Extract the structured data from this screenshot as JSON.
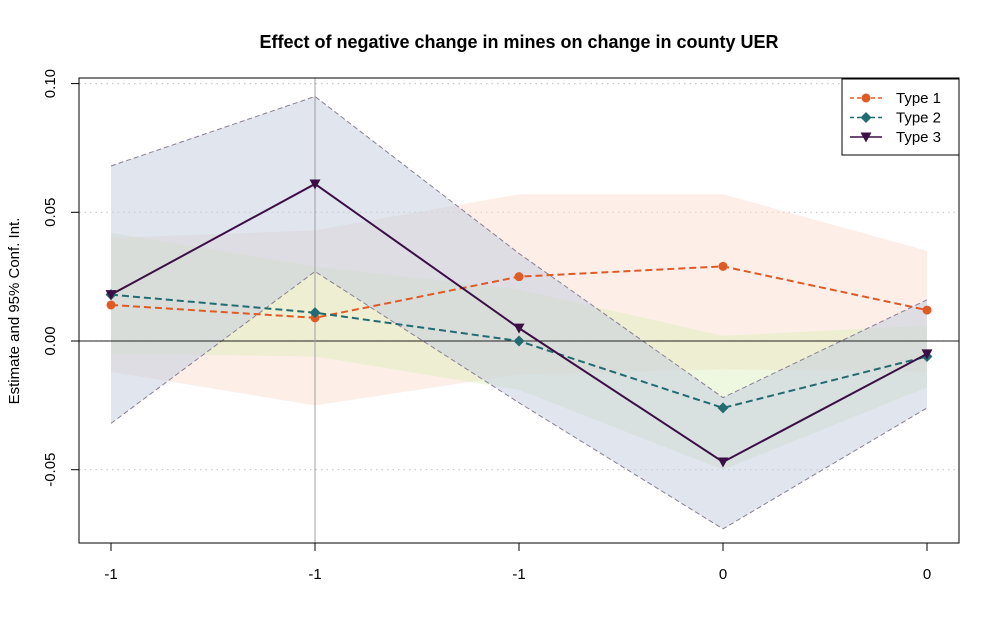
{
  "chart_data": {
    "type": "line",
    "title": "Effect of negative change in mines on change in county UER",
    "xlabel": "",
    "ylabel": "Estimate and 95% Conf. Int.",
    "x_tick_labels": [
      "-1",
      "-1",
      "-1",
      "0",
      "0"
    ],
    "y_ticks": [
      -0.05,
      0.0,
      0.05,
      0.1
    ],
    "y_tick_labels": [
      "-0.05",
      "0.00",
      "0.05",
      "0.10"
    ],
    "ylim": [
      -0.079,
      0.102
    ],
    "grid": "horizontal dotted at y ticks",
    "reference_lines": {
      "horizontal_at": 0.0,
      "vertical_at_index": 1
    },
    "legend_position": "top-right",
    "series": [
      {
        "name": "Type 1",
        "color": "#e05a26",
        "line_style": "dashed",
        "marker": "circle",
        "values": [
          0.014,
          0.009,
          0.025,
          0.029,
          0.012
        ],
        "ci_lower": [
          -0.012,
          -0.025,
          -0.013,
          -0.011,
          -0.012
        ],
        "ci_upper": [
          0.04,
          0.043,
          0.057,
          0.057,
          0.035
        ],
        "ci_fill": "#fad9cc"
      },
      {
        "name": "Type 2",
        "color": "#236b72",
        "line_style": "dashed",
        "marker": "diamond",
        "values": [
          0.018,
          0.011,
          0.0,
          -0.026,
          -0.006
        ],
        "ci_lower": [
          -0.005,
          -0.006,
          -0.019,
          -0.05,
          -0.018
        ],
        "ci_upper": [
          0.042,
          0.029,
          0.02,
          0.002,
          0.006
        ],
        "ci_fill": "#d9edb7"
      },
      {
        "name": "Type 3",
        "color": "#3b0f45",
        "line_style": "solid",
        "marker": "triangle-down",
        "values": [
          0.018,
          0.061,
          0.005,
          -0.047,
          -0.005
        ],
        "ci_lower": [
          -0.032,
          0.027,
          -0.024,
          -0.073,
          -0.026
        ],
        "ci_upper": [
          0.068,
          0.095,
          0.034,
          -0.022,
          0.016
        ],
        "ci_fill": "#c7cfe0",
        "ci_border": "dashed"
      }
    ]
  }
}
